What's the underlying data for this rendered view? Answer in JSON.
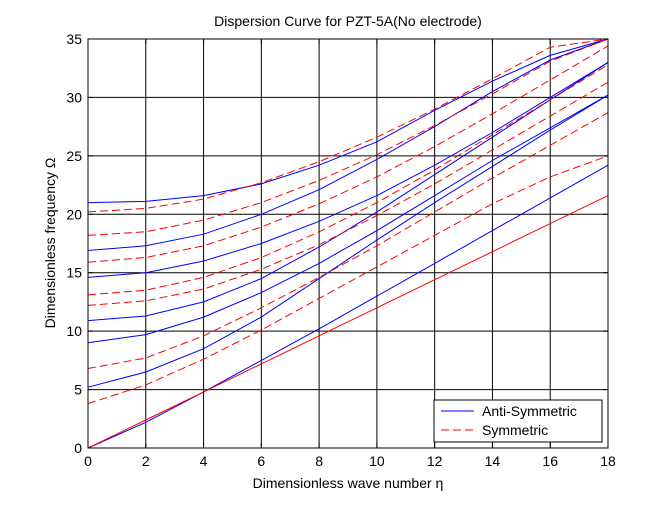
{
  "chart_data": {
    "type": "line",
    "title": "Dispersion Curve for PZT-5A(No electrode)",
    "xlabel": "Dimensionless wave number  η",
    "ylabel": "Dimensionless frequency  Ω",
    "xlim": [
      0,
      18
    ],
    "ylim": [
      0,
      35
    ],
    "xticks": [
      "0",
      "2",
      "4",
      "6",
      "8",
      "10",
      "12",
      "14",
      "16",
      "18"
    ],
    "yticks": [
      "0",
      "5",
      "10",
      "15",
      "20",
      "25",
      "30",
      "35"
    ],
    "grid": true,
    "legend_position": "bottom-right",
    "series": [
      {
        "name": "Anti-Symmetric",
        "color": "#0000ff",
        "style": "solid",
        "curves": [
          {
            "x": [
              0,
              2,
              4,
              6,
              8,
              10,
              12,
              14,
              16,
              18
            ],
            "y": [
              0,
              2.2,
              4.8,
              7.5,
              10.2,
              13,
              15.8,
              18.6,
              21.4,
              24.2
            ]
          },
          {
            "x": [
              0,
              2,
              4,
              6,
              8,
              10,
              12,
              14,
              16,
              18
            ],
            "y": [
              5.2,
              6.5,
              8.5,
              11.2,
              14.5,
              17.8,
              21,
              24.1,
              27.2,
              30.2
            ]
          },
          {
            "x": [
              0,
              2,
              4,
              6,
              8,
              10,
              12,
              14,
              16,
              18
            ],
            "y": [
              9,
              9.7,
              11.2,
              13.3,
              15.8,
              18.6,
              21.6,
              24.6,
              27.4,
              30.2
            ]
          },
          {
            "x": [
              0,
              2,
              4,
              6,
              8,
              10,
              12,
              14,
              16,
              18
            ],
            "y": [
              10.9,
              11.3,
              12.5,
              14.5,
              17.2,
              20.2,
              23.4,
              26.6,
              29.8,
              33
            ]
          },
          {
            "x": [
              0,
              2,
              4,
              6,
              8,
              10,
              12,
              14,
              16,
              18
            ],
            "y": [
              14.6,
              15,
              16,
              17.5,
              19.4,
              21.6,
              24.2,
              27,
              30,
              33
            ]
          },
          {
            "x": [
              0,
              2,
              4,
              6,
              8,
              10,
              12,
              14,
              16,
              18
            ],
            "y": [
              16.9,
              17.3,
              18.3,
              20,
              22.1,
              24.7,
              27.5,
              30.5,
              33.2,
              35
            ]
          },
          {
            "x": [
              0,
              2,
              4,
              6,
              8,
              10,
              12,
              14,
              16,
              18
            ],
            "y": [
              21,
              21.1,
              21.6,
              22.6,
              24.2,
              26.2,
              28.9,
              31.4,
              33.6,
              35
            ]
          }
        ]
      },
      {
        "name": "Symmetric",
        "color": "#ff0000",
        "style": "dashed",
        "curves": [
          {
            "x": [
              0,
              2,
              4,
              6,
              8,
              10,
              12,
              14,
              16,
              18
            ],
            "y": [
              3.8,
              5.4,
              7.6,
              10.1,
              12.8,
              15.5,
              18.2,
              20.9,
              23.2,
              25
            ]
          },
          {
            "x": [
              0,
              2,
              4,
              6,
              8,
              10,
              12,
              14,
              16,
              18
            ],
            "y": [
              6.8,
              7.7,
              9.6,
              12,
              14.6,
              17.3,
              20.2,
              23.1,
              25.9,
              28.7
            ]
          },
          {
            "x": [
              0,
              2,
              4,
              6,
              8,
              10,
              12,
              14,
              16,
              18
            ],
            "y": [
              12.2,
              12.6,
              13.6,
              15.3,
              17.4,
              19.9,
              22.6,
              25.5,
              28.4,
              31.3
            ]
          },
          {
            "x": [
              0,
              2,
              4,
              6,
              8,
              10,
              12,
              14,
              16,
              18
            ],
            "y": [
              13.1,
              13.5,
              14.6,
              16.3,
              18.5,
              21,
              23.8,
              26.8,
              29.8,
              32.8
            ]
          },
          {
            "x": [
              0,
              2,
              4,
              6,
              8,
              10,
              12,
              14,
              16,
              18
            ],
            "y": [
              15.9,
              16.3,
              17.3,
              18.9,
              20.9,
              23.2,
              25.8,
              28.6,
              31.5,
              34.4
            ]
          },
          {
            "x": [
              0,
              2,
              4,
              6,
              8,
              10,
              12,
              14,
              16,
              18
            ],
            "y": [
              18.2,
              18.5,
              19.5,
              21,
              22.9,
              25.1,
              27.6,
              30.3,
              33.1,
              35
            ]
          },
          {
            "x": [
              0,
              2,
              4,
              6,
              8,
              10,
              12,
              14,
              16,
              18
            ],
            "y": [
              20.2,
              20.5,
              21.3,
              22.7,
              24.5,
              26.6,
              29,
              31.6,
              34.3,
              35
            ]
          }
        ]
      },
      {
        "name": "",
        "color": "#ff0000",
        "style": "solid",
        "curves": [
          {
            "x": [
              0,
              2,
              4,
              6,
              8,
              10,
              12,
              14,
              16,
              18
            ],
            "y": [
              0,
              2.4,
              4.8,
              7.2,
              9.6,
              12,
              14.4,
              16.8,
              19.2,
              21.6
            ]
          }
        ]
      }
    ]
  }
}
